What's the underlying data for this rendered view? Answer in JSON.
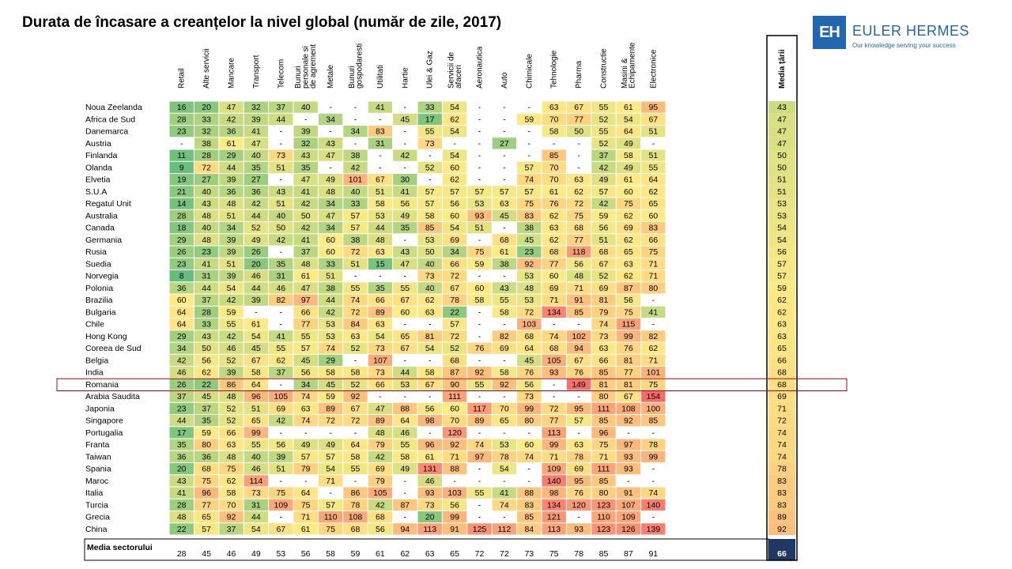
{
  "title": "Durata de încasare a creanțelor la nivel global (număr de zile, 2017)",
  "logo": {
    "mark": "EH",
    "name": "EULER HERMES",
    "tagline": "Our knowledge serving your success"
  },
  "colors": {
    "brand": "#2166b0",
    "low": "#63be7b",
    "mid": "#ffeb84",
    "high": "#f8696b",
    "navy": "#1f3864",
    "highlight": "#c00000"
  },
  "chart_data": {
    "type": "heatmap",
    "title": "Durata de încasare a creanțelor la nivel global (număr de zile, 2017)",
    "columns": [
      [
        "Retail"
      ],
      [
        "Alte servicii"
      ],
      [
        "Mancare"
      ],
      [
        "Transport"
      ],
      [
        "Telecom"
      ],
      [
        "Bunuri",
        "personale si",
        "de agrement"
      ],
      [
        "Metale"
      ],
      [
        "Bunuri",
        "gospodaresti"
      ],
      [
        "Utilitati"
      ],
      [
        "Hartie"
      ],
      [
        "Ulei & Gaz"
      ],
      [
        "Servicii de",
        "afaceri"
      ],
      [
        "Aeronautica"
      ],
      [
        "Auto"
      ],
      [
        "Chimicale"
      ],
      [
        "Tehnologie"
      ],
      [
        "Pharma"
      ],
      [
        "Constructie"
      ],
      [
        "Masini &",
        "Echipamente"
      ],
      [
        "Electronice"
      ]
    ],
    "average_column_label": "Media țării",
    "rows": [
      {
        "country": "Noua Zeelanda",
        "values": [
          16,
          20,
          47,
          32,
          37,
          40,
          null,
          null,
          41,
          null,
          33,
          54,
          null,
          null,
          null,
          63,
          67,
          55,
          61,
          95
        ],
        "avg": 43
      },
      {
        "country": "Africa de Sud",
        "values": [
          28,
          33,
          42,
          39,
          44,
          null,
          34,
          null,
          null,
          45,
          17,
          62,
          null,
          null,
          59,
          70,
          77,
          52,
          54,
          67
        ],
        "avg": 47
      },
      {
        "country": "Danemarca",
        "values": [
          23,
          32,
          36,
          41,
          null,
          39,
          null,
          34,
          83,
          null,
          55,
          54,
          null,
          null,
          null,
          58,
          50,
          55,
          64,
          51
        ],
        "avg": 47
      },
      {
        "country": "Austria",
        "values": [
          null,
          38,
          61,
          47,
          null,
          32,
          43,
          null,
          31,
          null,
          73,
          null,
          null,
          27,
          null,
          null,
          null,
          52,
          49,
          null
        ],
        "avg": 47
      },
      {
        "country": "Finlanda",
        "values": [
          11,
          28,
          29,
          40,
          73,
          43,
          47,
          38,
          null,
          42,
          null,
          54,
          null,
          null,
          null,
          85,
          null,
          37,
          58,
          51
        ],
        "avg": 50
      },
      {
        "country": "Olanda",
        "values": [
          9,
          72,
          44,
          35,
          51,
          35,
          null,
          42,
          null,
          null,
          52,
          60,
          null,
          null,
          57,
          70,
          null,
          42,
          49,
          55
        ],
        "avg": 50
      },
      {
        "country": "Elvetia",
        "values": [
          19,
          27,
          39,
          27,
          null,
          47,
          49,
          101,
          67,
          30,
          null,
          62,
          null,
          null,
          74,
          70,
          63,
          49,
          61,
          64
        ],
        "avg": 51
      },
      {
        "country": "S.U.A",
        "values": [
          21,
          40,
          36,
          36,
          43,
          41,
          48,
          40,
          51,
          41,
          57,
          57,
          57,
          57,
          57,
          61,
          62,
          57,
          60,
          62
        ],
        "avg": 51
      },
      {
        "country": "Regatul Unit",
        "values": [
          14,
          43,
          48,
          42,
          51,
          42,
          34,
          33,
          58,
          56,
          57,
          56,
          53,
          63,
          75,
          76,
          72,
          42,
          75,
          65
        ],
        "avg": 53
      },
      {
        "country": "Australia",
        "values": [
          28,
          48,
          51,
          44,
          40,
          50,
          47,
          57,
          53,
          49,
          58,
          60,
          93,
          45,
          83,
          62,
          75,
          59,
          62,
          60
        ],
        "avg": 53
      },
      {
        "country": "Canada",
        "values": [
          18,
          40,
          34,
          52,
          50,
          42,
          34,
          57,
          44,
          35,
          85,
          54,
          51,
          null,
          38,
          63,
          68,
          56,
          69,
          83
        ],
        "avg": 54
      },
      {
        "country": "Germania",
        "values": [
          29,
          48,
          39,
          49,
          42,
          41,
          60,
          38,
          48,
          null,
          53,
          69,
          null,
          68,
          45,
          62,
          77,
          51,
          62,
          66
        ],
        "avg": 54
      },
      {
        "country": "Rusia",
        "values": [
          26,
          23,
          39,
          26,
          null,
          37,
          60,
          72,
          63,
          43,
          50,
          34,
          75,
          61,
          23,
          68,
          118,
          68,
          65,
          75
        ],
        "avg": 56
      },
      {
        "country": "Suedia",
        "values": [
          23,
          41,
          51,
          20,
          35,
          48,
          33,
          51,
          15,
          47,
          40,
          66,
          59,
          38,
          92,
          77,
          56,
          67,
          63,
          71
        ],
        "avg": 57
      },
      {
        "country": "Norvegia",
        "values": [
          8,
          31,
          39,
          46,
          31,
          61,
          51,
          null,
          null,
          null,
          73,
          72,
          null,
          null,
          53,
          60,
          48,
          52,
          62,
          71
        ],
        "avg": 57
      },
      {
        "country": "Polonia",
        "values": [
          36,
          44,
          54,
          44,
          46,
          47,
          38,
          55,
          35,
          55,
          40,
          67,
          60,
          43,
          48,
          69,
          71,
          69,
          87,
          80
        ],
        "avg": 59
      },
      {
        "country": "Brazilia",
        "values": [
          60,
          37,
          42,
          39,
          82,
          97,
          44,
          74,
          66,
          67,
          62,
          78,
          58,
          55,
          53,
          71,
          91,
          81,
          56,
          null
        ],
        "avg": 62
      },
      {
        "country": "Bulgaria",
        "values": [
          64,
          28,
          59,
          null,
          null,
          66,
          42,
          72,
          89,
          60,
          63,
          22,
          null,
          58,
          72,
          134,
          85,
          79,
          75,
          41
        ],
        "avg": 62
      },
      {
        "country": "Chile",
        "values": [
          64,
          33,
          55,
          61,
          null,
          77,
          53,
          84,
          63,
          null,
          null,
          57,
          null,
          null,
          103,
          null,
          null,
          74,
          115,
          null
        ],
        "avg": 63
      },
      {
        "country": "Hong Kong",
        "values": [
          29,
          43,
          42,
          54,
          41,
          55,
          53,
          63,
          54,
          65,
          81,
          72,
          null,
          82,
          68,
          74,
          102,
          73,
          99,
          82
        ],
        "avg": 63
      },
      {
        "country": "Coreea de Sud",
        "values": [
          34,
          50,
          46,
          45,
          55,
          57,
          74,
          52,
          73,
          67,
          54,
          52,
          76,
          69,
          64,
          68,
          94,
          63,
          76,
          62
        ],
        "avg": 65
      },
      {
        "country": "Belgia",
        "values": [
          42,
          56,
          52,
          67,
          62,
          45,
          29,
          null,
          107,
          null,
          null,
          68,
          null,
          null,
          45,
          105,
          67,
          66,
          81,
          71
        ],
        "avg": 66
      },
      {
        "country": "India",
        "values": [
          46,
          62,
          39,
          58,
          37,
          56,
          58,
          58,
          73,
          44,
          58,
          87,
          92,
          58,
          76,
          93,
          76,
          85,
          77,
          101
        ],
        "avg": 68
      },
      {
        "country": "Romania",
        "values": [
          26,
          22,
          86,
          64,
          null,
          34,
          45,
          52,
          66,
          53,
          67,
          90,
          55,
          92,
          56,
          null,
          149,
          81,
          81,
          75
        ],
        "avg": 68,
        "highlight": true
      },
      {
        "country": "Arabia Saudita",
        "values": [
          37,
          45,
          48,
          96,
          105,
          74,
          59,
          92,
          null,
          null,
          null,
          111,
          null,
          null,
          73,
          null,
          null,
          80,
          67,
          154
        ],
        "avg": 69
      },
      {
        "country": "Japonia",
        "values": [
          23,
          37,
          52,
          51,
          69,
          63,
          89,
          67,
          47,
          88,
          56,
          60,
          117,
          70,
          99,
          72,
          95,
          111,
          108,
          100
        ],
        "avg": 71
      },
      {
        "country": "Singapore",
        "values": [
          44,
          35,
          52,
          65,
          42,
          74,
          72,
          72,
          89,
          64,
          98,
          70,
          89,
          65,
          80,
          77,
          57,
          85,
          92,
          85
        ],
        "avg": 72
      },
      {
        "country": "Portugalia",
        "values": [
          17,
          59,
          66,
          99,
          null,
          null,
          null,
          null,
          48,
          46,
          null,
          120,
          null,
          null,
          null,
          113,
          null,
          96,
          null,
          null
        ],
        "avg": 74
      },
      {
        "country": "Franta",
        "values": [
          35,
          80,
          63,
          55,
          56,
          49,
          49,
          64,
          79,
          55,
          96,
          92,
          74,
          53,
          60,
          99,
          63,
          75,
          97,
          78
        ],
        "avg": 74
      },
      {
        "country": "Taiwan",
        "values": [
          36,
          36,
          48,
          40,
          39,
          57,
          57,
          58,
          42,
          58,
          61,
          71,
          97,
          78,
          74,
          71,
          78,
          71,
          93,
          99
        ],
        "avg": 74
      },
      {
        "country": "Spania",
        "values": [
          20,
          68,
          75,
          46,
          51,
          79,
          54,
          55,
          69,
          49,
          131,
          88,
          null,
          54,
          null,
          109,
          69,
          111,
          93,
          null
        ],
        "avg": 78
      },
      {
        "country": "Maroc",
        "values": [
          43,
          75,
          62,
          114,
          null,
          null,
          71,
          null,
          79,
          null,
          46,
          null,
          null,
          null,
          null,
          140,
          95,
          85,
          null,
          null
        ],
        "avg": 83
      },
      {
        "country": "Italia",
        "values": [
          41,
          96,
          58,
          73,
          75,
          64,
          null,
          86,
          105,
          null,
          93,
          103,
          55,
          41,
          88,
          98,
          76,
          80,
          91,
          74
        ],
        "avg": 83
      },
      {
        "country": "Turcia",
        "values": [
          28,
          77,
          70,
          31,
          109,
          75,
          57,
          78,
          42,
          87,
          73,
          56,
          null,
          74,
          83,
          134,
          120,
          123,
          107,
          140
        ],
        "avg": 83
      },
      {
        "country": "Grecia",
        "values": [
          48,
          65,
          92,
          44,
          null,
          71,
          110,
          108,
          68,
          null,
          20,
          99,
          null,
          null,
          85,
          121,
          null,
          110,
          109,
          null
        ],
        "avg": 89
      },
      {
        "country": "China",
        "values": [
          22,
          57,
          37,
          54,
          67,
          61,
          75,
          68,
          56,
          94,
          113,
          91,
          125,
          112,
          84,
          113,
          93,
          123,
          126,
          139
        ],
        "avg": 92
      }
    ],
    "sector_average": {
      "label": "Media sectorului",
      "values": [
        28,
        45,
        46,
        49,
        53,
        56,
        58,
        59,
        61,
        62,
        63,
        65,
        72,
        72,
        73,
        75,
        78,
        85,
        87,
        91
      ],
      "overall": 66
    },
    "missing_symbol": "-",
    "color_scale": {
      "min": 8,
      "mid": 60,
      "max": 154
    }
  }
}
